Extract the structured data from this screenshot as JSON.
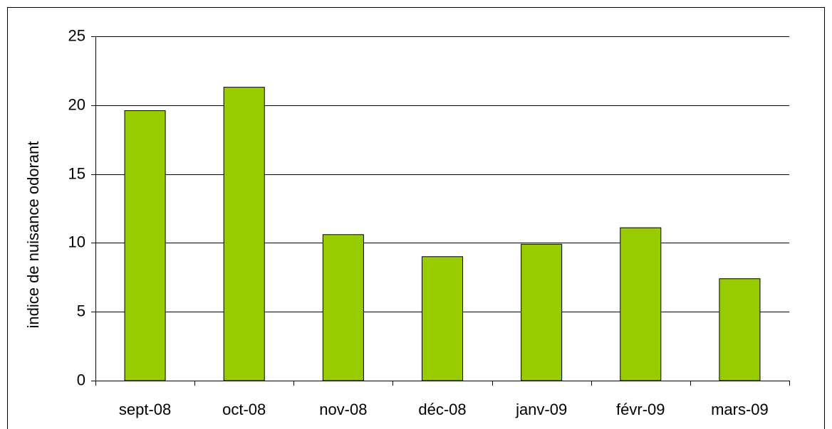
{
  "chart_data": {
    "type": "bar",
    "y_label": "indice de nuisance odorant",
    "categories": [
      "sept-08",
      "oct-08",
      "nov-08",
      "déc-08",
      "janv-09",
      "févr-09",
      "mars-09"
    ],
    "values": [
      19.6,
      21.3,
      10.6,
      9.0,
      9.9,
      11.1,
      7.4
    ],
    "color": "#99cc00",
    "ylim": [
      0,
      25
    ],
    "yticks": [
      0,
      5,
      10,
      15,
      20,
      25
    ],
    "grid": true
  }
}
